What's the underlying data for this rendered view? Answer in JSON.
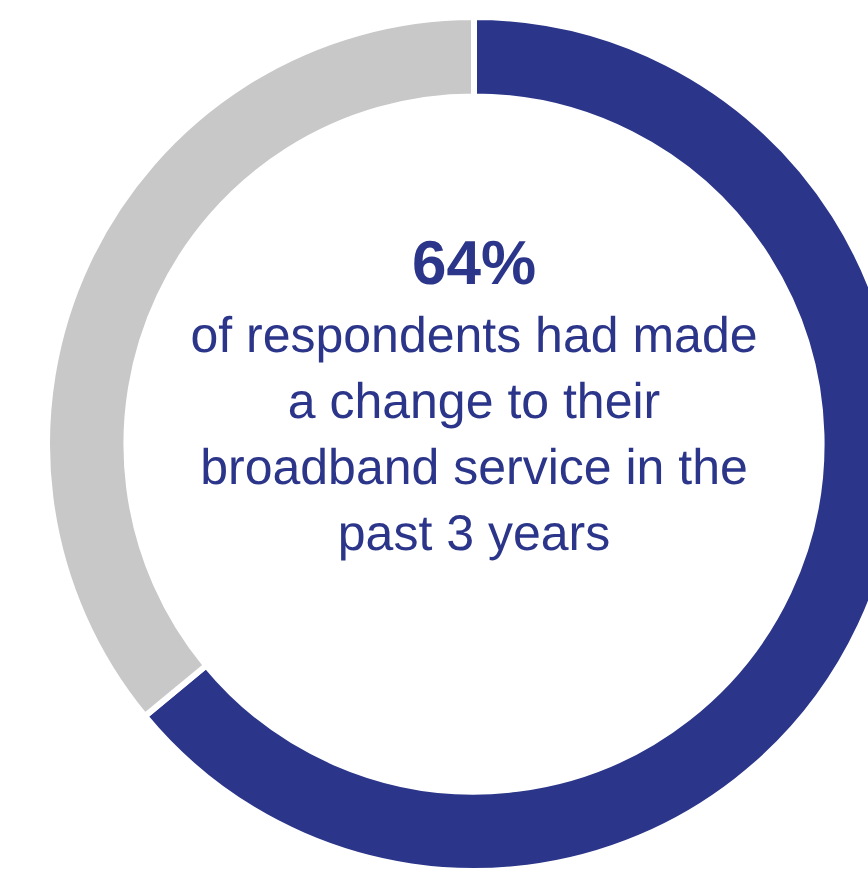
{
  "chart_data": {
    "type": "donut",
    "title": "64%",
    "annotations": [
      "of respondents had made a change to their broadband service in the past 3 years"
    ],
    "categories": [
      null,
      null
    ],
    "values": [
      64,
      36
    ],
    "colors": [
      "#2b3589",
      "#c8c8c8"
    ],
    "legend": false
  }
}
